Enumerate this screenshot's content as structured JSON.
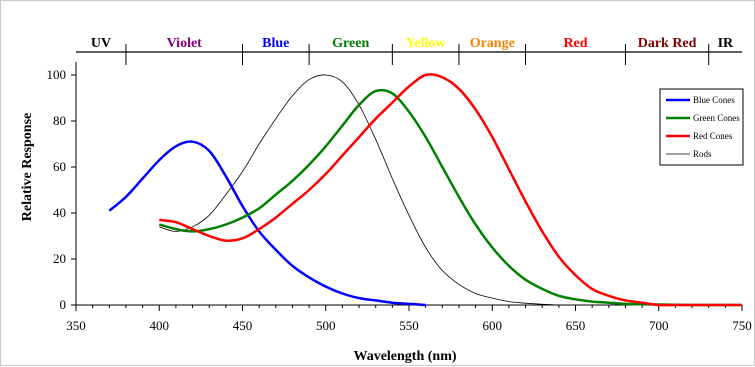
{
  "chart_data": {
    "type": "line",
    "xlabel": "Wavelength  (nm)",
    "ylabel": "Relative Response",
    "xlim": [
      350,
      750
    ],
    "ylim": [
      0,
      110
    ],
    "x_ticks": [
      350,
      400,
      450,
      500,
      550,
      600,
      650,
      700,
      750
    ],
    "y_ticks": [
      0,
      20,
      40,
      60,
      80,
      100
    ],
    "grid": false,
    "legend_position": "right",
    "bands": [
      {
        "label": "UV",
        "from": 350,
        "to": 380,
        "color": "#000000"
      },
      {
        "label": "Violet",
        "from": 380,
        "to": 450,
        "color": "#800080"
      },
      {
        "label": "Blue",
        "from": 450,
        "to": 490,
        "color": "#0000ff"
      },
      {
        "label": "Green",
        "from": 490,
        "to": 540,
        "color": "#008000"
      },
      {
        "label": "Yellow",
        "from": 540,
        "to": 580,
        "color": "#ffff00"
      },
      {
        "label": "Orange",
        "from": 580,
        "to": 620,
        "color": "#ff8000"
      },
      {
        "label": "Red",
        "from": 620,
        "to": 680,
        "color": "#ff0000"
      },
      {
        "label": "Dark Red",
        "from": 680,
        "to": 730,
        "color": "#800000"
      },
      {
        "label": "IR",
        "from": 730,
        "to": 750,
        "color": "#000000"
      }
    ],
    "series": [
      {
        "name": "Blue Cones",
        "color": "#0000ff",
        "width": 2.5,
        "x": [
          370,
          380,
          390,
          400,
          410,
          420,
          430,
          440,
          450,
          460,
          470,
          480,
          490,
          500,
          510,
          520,
          530,
          540,
          550,
          560
        ],
        "y": [
          41,
          47,
          55,
          63,
          69,
          71,
          67,
          56,
          43,
          32,
          24,
          17,
          12,
          8,
          5,
          3,
          2,
          1,
          0.5,
          0
        ]
      },
      {
        "name": "Green Cones",
        "color": "#008000",
        "width": 2.5,
        "x": [
          400,
          410,
          420,
          430,
          440,
          450,
          460,
          470,
          480,
          490,
          500,
          510,
          520,
          530,
          540,
          550,
          560,
          570,
          580,
          590,
          600,
          610,
          620,
          630,
          640,
          650,
          660,
          670,
          680,
          690,
          700,
          710,
          720,
          730,
          740,
          750
        ],
        "y": [
          35,
          33,
          32,
          33,
          35,
          38,
          42,
          48,
          54,
          61,
          69,
          78,
          87,
          93,
          92,
          84,
          73,
          60,
          47,
          35,
          25,
          17,
          11,
          7,
          4,
          2.5,
          1.5,
          1,
          0.5,
          0.3,
          0.2,
          0.1,
          0,
          0,
          0,
          0
        ]
      },
      {
        "name": "Red Cones",
        "color": "#ff0000",
        "width": 2.5,
        "x": [
          400,
          410,
          420,
          430,
          440,
          450,
          460,
          470,
          480,
          490,
          500,
          510,
          520,
          530,
          540,
          550,
          560,
          570,
          580,
          590,
          600,
          610,
          620,
          630,
          640,
          650,
          660,
          670,
          680,
          690,
          700,
          710,
          720,
          730,
          740,
          750
        ],
        "y": [
          37,
          36,
          33,
          30,
          28,
          29,
          33,
          38,
          44,
          50,
          57,
          65,
          73,
          81,
          88,
          95,
          100,
          99,
          94,
          85,
          73,
          59,
          45,
          32,
          21,
          13,
          7,
          4,
          2,
          1,
          0,
          0,
          0,
          0,
          0,
          0
        ]
      },
      {
        "name": "Rods",
        "color": "#000000",
        "width": 0.8,
        "x": [
          400,
          410,
          420,
          430,
          440,
          450,
          460,
          470,
          480,
          490,
          500,
          510,
          520,
          530,
          540,
          550,
          560,
          570,
          580,
          590,
          600,
          610,
          620,
          630,
          640
        ],
        "y": [
          34,
          32,
          34,
          39,
          48,
          58,
          70,
          81,
          91,
          98,
          100,
          97,
          87,
          72,
          55,
          39,
          25,
          15,
          9,
          5,
          3,
          1.5,
          0.8,
          0.3,
          0
        ]
      }
    ]
  }
}
